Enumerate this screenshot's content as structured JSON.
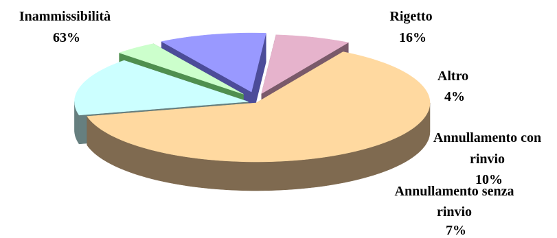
{
  "chart_data": {
    "type": "pie",
    "style": "3d-exploded",
    "title": "",
    "slices": [
      {
        "label_lines": [
          "Inammissibilità",
          "63%"
        ],
        "value": 63,
        "color": "#FFD9A0",
        "side_color": "#7F6A50"
      },
      {
        "label_lines": [
          "Rigetto",
          "16%"
        ],
        "value": 16,
        "color": "#CCFFFF",
        "side_color": "#667F7F"
      },
      {
        "label_lines": [
          "Altro",
          "4%"
        ],
        "value": 4,
        "color": "#CCFFCC",
        "side_color": "#4F8F4F"
      },
      {
        "label_lines": [
          "Annullamento con",
          "rinvio",
          "10%"
        ],
        "value": 10,
        "color": "#9999FF",
        "side_color": "#4C4C99"
      },
      {
        "label_lines": [
          "Annullamento senza",
          "rinvio",
          "7%"
        ],
        "value": 7,
        "color": "#E6B3CC",
        "side_color": "#7A5A6A"
      }
    ]
  }
}
